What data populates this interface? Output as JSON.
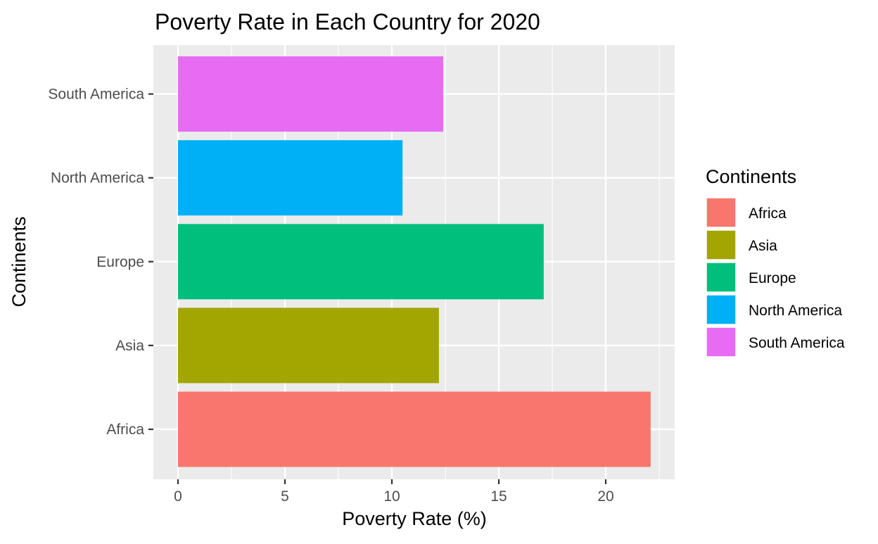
{
  "chart_data": {
    "type": "bar",
    "orientation": "horizontal",
    "title": "Poverty Rate in Each Country for 2020",
    "xlabel": "Poverty Rate (%)",
    "ylabel": "Continents",
    "categories": [
      "Africa",
      "Asia",
      "Europe",
      "North America",
      "South America"
    ],
    "values": [
      22.1,
      12.2,
      17.1,
      10.5,
      12.4
    ],
    "colors": [
      "#F8766D",
      "#A3A500",
      "#00BF7D",
      "#00B0F6",
      "#E76BF3"
    ],
    "xlim": [
      0,
      22.5
    ],
    "xticks": [
      0,
      5,
      10,
      15,
      20
    ],
    "grid": true,
    "panel_background": "#EBEBEB",
    "legend": {
      "title": "Continents",
      "position": "right",
      "entries": [
        "Africa",
        "Asia",
        "Europe",
        "North America",
        "South America"
      ]
    }
  }
}
